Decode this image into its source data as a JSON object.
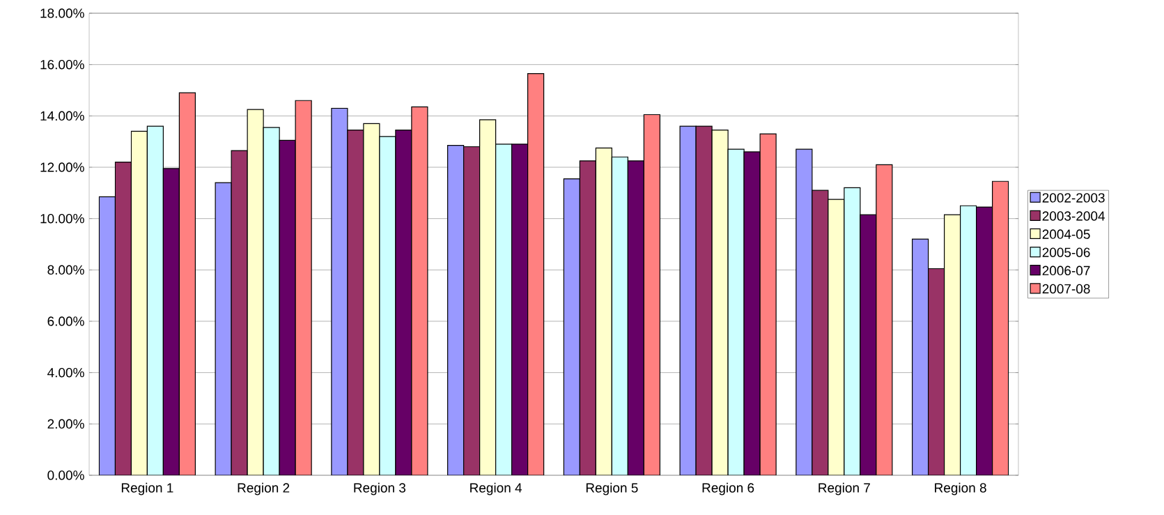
{
  "chart_data": {
    "type": "bar",
    "categories": [
      "Region 1",
      "Region 2",
      "Region 3",
      "Region 4",
      "Region 5",
      "Region 6",
      "Region 7",
      "Region 8"
    ],
    "series": [
      {
        "name": "2002-2003",
        "color": "#9999ff",
        "values": [
          10.85,
          11.4,
          14.3,
          12.85,
          11.55,
          13.6,
          12.7,
          9.2
        ]
      },
      {
        "name": "2003-2004",
        "color": "#993366",
        "values": [
          12.2,
          12.65,
          13.45,
          12.8,
          12.25,
          13.6,
          11.1,
          8.05
        ]
      },
      {
        "name": "2004-05",
        "color": "#ffffcc",
        "values": [
          13.4,
          14.25,
          13.7,
          13.85,
          12.75,
          13.45,
          10.75,
          10.15
        ]
      },
      {
        "name": "2005-06",
        "color": "#ccffff",
        "values": [
          13.6,
          13.55,
          13.2,
          12.9,
          12.4,
          12.7,
          11.2,
          10.5
        ]
      },
      {
        "name": "2006-07",
        "color": "#660066",
        "values": [
          11.95,
          13.05,
          13.45,
          12.9,
          12.25,
          12.6,
          10.15,
          10.45
        ]
      },
      {
        "name": "2007-08",
        "color": "#ff8080",
        "values": [
          14.9,
          14.6,
          14.35,
          15.65,
          14.05,
          13.3,
          12.1,
          11.45
        ]
      }
    ],
    "ylim": [
      0,
      18
    ],
    "yticks": [
      {
        "value": 0,
        "label": "0.00%"
      },
      {
        "value": 2,
        "label": "2.00%"
      },
      {
        "value": 4,
        "label": "4.00%"
      },
      {
        "value": 6,
        "label": "6.00%"
      },
      {
        "value": 8,
        "label": "8.00%"
      },
      {
        "value": 10,
        "label": "10.00%"
      },
      {
        "value": 12,
        "label": "12.00%"
      },
      {
        "value": 14,
        "label": "14.00%"
      },
      {
        "value": 16,
        "label": "16.00%"
      },
      {
        "value": 18,
        "label": "18.00%"
      }
    ],
    "grid": "y",
    "legend": "right"
  }
}
